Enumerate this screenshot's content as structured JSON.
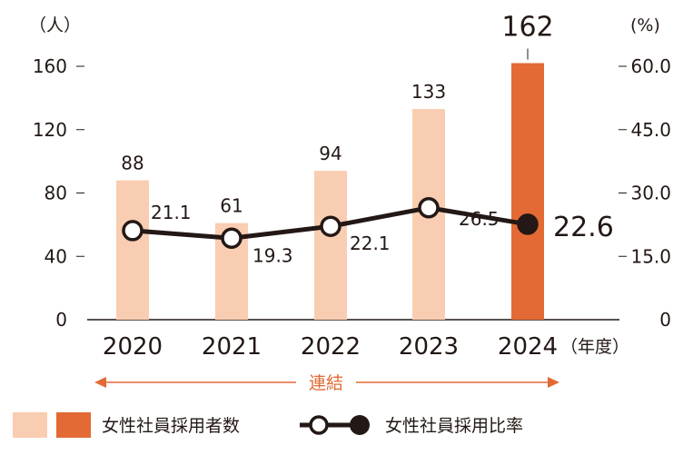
{
  "chart_data": {
    "type": "bar+line",
    "categories": [
      "2020",
      "2021",
      "2022",
      "2023",
      "2024"
    ],
    "x_unit": "（年度）",
    "y_left": {
      "unit": "（人）",
      "ticks": [
        "0",
        "40",
        "80",
        "120",
        "160"
      ],
      "range": [
        0,
        160
      ]
    },
    "y_right": {
      "unit": "(%)",
      "ticks": [
        "0",
        "15.0",
        "30.0",
        "45.0",
        "60.0"
      ],
      "range": [
        0,
        60
      ]
    },
    "series": [
      {
        "name": "女性社員採用者数",
        "type": "bar",
        "values": [
          88,
          61,
          94,
          133,
          162
        ],
        "labels": [
          "88",
          "61",
          "94",
          "133",
          "162"
        ],
        "color": "#F9CDB1",
        "highlight_color": "#E36A35",
        "highlight_index": 4
      },
      {
        "name": "女性社員採用比率",
        "type": "line",
        "axis": "right",
        "values": [
          21.1,
          19.3,
          22.1,
          26.5,
          22.6
        ],
        "labels": [
          "21.1",
          "19.3",
          "22.1",
          "26.5",
          "22.6"
        ],
        "color": "#231815",
        "highlight_index": 4
      }
    ],
    "group_label": "連結",
    "group_color": "#E36A35"
  }
}
